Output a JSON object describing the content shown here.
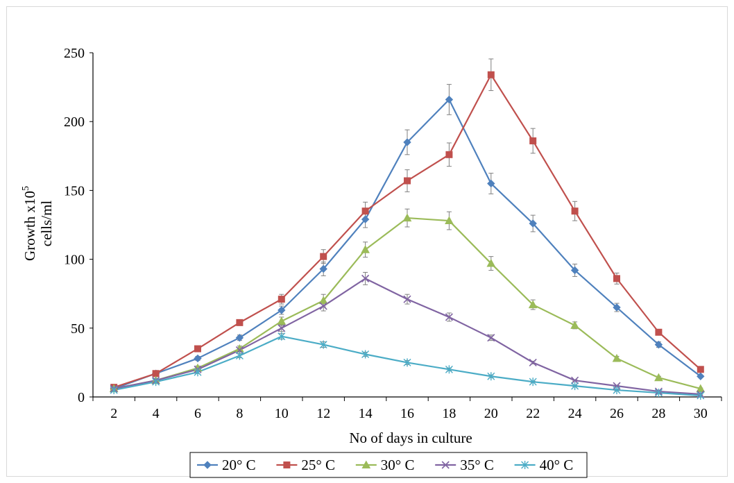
{
  "chart_data": {
    "type": "line",
    "title": "",
    "xlabel": "No of days in culture",
    "ylabel_line1": "Growth x10",
    "ylabel_superscript": "5",
    "ylabel_line2": "cells/ml",
    "x": [
      2,
      4,
      6,
      8,
      10,
      12,
      14,
      16,
      18,
      20,
      22,
      24,
      26,
      28,
      30
    ],
    "xlim": [
      1,
      31
    ],
    "ylim": [
      0,
      250
    ],
    "yticks": [
      0,
      50,
      100,
      150,
      200,
      250
    ],
    "grid": false,
    "legend_position": "bottom",
    "series": [
      {
        "name": "20° C",
        "color": "#4f81bd",
        "marker": "diamond",
        "values": [
          6,
          17,
          28,
          43,
          63,
          93,
          129,
          185,
          216,
          155,
          126,
          92,
          65,
          38,
          15
        ],
        "errors": [
          1,
          1.5,
          1.5,
          2,
          3,
          5,
          6,
          9,
          11,
          7.5,
          6,
          4.5,
          3,
          2,
          1
        ]
      },
      {
        "name": "25° C",
        "color": "#c0504d",
        "marker": "square",
        "values": [
          7,
          17,
          35,
          54,
          71,
          102,
          135,
          157,
          176,
          234,
          186,
          135,
          86,
          47,
          20
        ],
        "errors": [
          1,
          1.5,
          1.5,
          2,
          3.5,
          5,
          6.5,
          8,
          8.5,
          11.5,
          9,
          7,
          4,
          2,
          1
        ]
      },
      {
        "name": "30° C",
        "color": "#9bbb59",
        "marker": "triangle",
        "values": [
          6,
          12,
          21,
          35,
          55,
          70,
          107,
          130,
          128,
          97,
          67,
          52,
          28,
          14,
          6
        ],
        "errors": [
          1,
          1,
          1.5,
          2,
          3,
          4.5,
          5.5,
          6.5,
          6.5,
          5,
          3.5,
          2.5,
          1.5,
          1,
          0.5
        ]
      },
      {
        "name": "35° C",
        "color": "#8064a2",
        "marker": "x",
        "values": [
          6,
          12,
          20,
          34,
          50,
          66,
          86,
          71,
          58,
          43,
          25,
          12,
          8,
          4,
          2
        ],
        "errors": [
          1,
          1,
          1,
          1.5,
          2.5,
          3.5,
          4.5,
          3.5,
          3,
          2,
          1,
          0.5,
          0.5,
          0.5,
          0.5
        ]
      },
      {
        "name": "40° C",
        "color": "#4bacc6",
        "marker": "star",
        "values": [
          5,
          11,
          18,
          30,
          44,
          38,
          31,
          25,
          20,
          15,
          11,
          8,
          5,
          3,
          1
        ],
        "errors": [
          0.5,
          1,
          1,
          1.5,
          2,
          2,
          1.5,
          1.5,
          1,
          1,
          0.5,
          0.5,
          0.5,
          0.5,
          0.5
        ]
      }
    ]
  }
}
